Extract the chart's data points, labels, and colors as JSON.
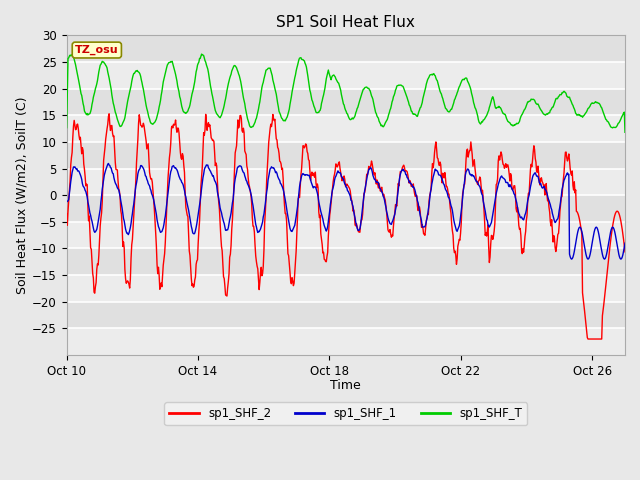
{
  "title": "SP1 Soil Heat Flux",
  "xlabel": "Time",
  "ylabel": "Soil Heat Flux (W/m2), SoilT (C)",
  "ylim": [
    -30,
    30
  ],
  "x_tick_labels": [
    "Oct 10",
    "Oct 14",
    "Oct 18",
    "Oct 22",
    "Oct 26"
  ],
  "x_tick_positions": [
    0,
    4,
    8,
    12,
    16
  ],
  "fig_bg_color": "#e8e8e8",
  "plot_bg_color": "#e0e0e0",
  "grid_color": "#f5f5f5",
  "line_colors": {
    "sp1_SHF_2": "#ff0000",
    "sp1_SHF_1": "#0000cc",
    "sp1_SHF_T": "#00cc00"
  },
  "tz_label": "TZ_osu",
  "title_fontsize": 11,
  "axis_label_fontsize": 9,
  "tick_fontsize": 8.5
}
